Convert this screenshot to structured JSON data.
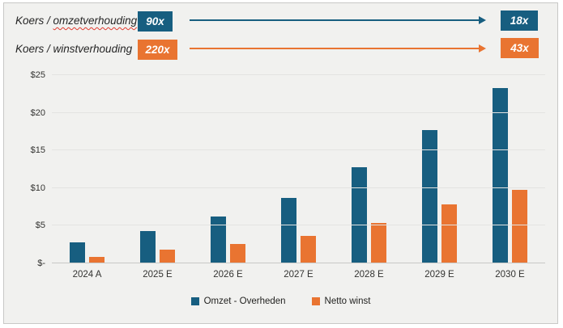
{
  "header": {
    "row1": {
      "prefix": "Koers / ",
      "term": "omzetverhouding",
      "start_badge": "90x",
      "end_badge": "18x",
      "color": "#175e80"
    },
    "row2": {
      "prefix": "Koers / ",
      "term": "winstverhouding",
      "start_badge": "220x",
      "end_badge": "43x",
      "color": "#e97431"
    }
  },
  "chart_data": {
    "type": "bar",
    "categories": [
      "2024 A",
      "2025 E",
      "2026 E",
      "2027 E",
      "2028 E",
      "2029 E",
      "2030 E"
    ],
    "series": [
      {
        "name": "Omzet - Overheden",
        "color": "#175e80",
        "values": [
          2.8,
          4.3,
          6.2,
          8.7,
          12.8,
          17.7,
          23.3
        ]
      },
      {
        "name": "Netto winst",
        "color": "#e97431",
        "values": [
          0.9,
          1.8,
          2.6,
          3.6,
          5.4,
          7.8,
          9.8
        ]
      }
    ],
    "title": "",
    "xlabel": "",
    "ylabel": "",
    "ylim": [
      0,
      25
    ],
    "ytick_labels_bottom_to_top": [
      "$-",
      "$5",
      "$10",
      "$15",
      "$20",
      "$25"
    ],
    "grid": true,
    "legend_position": "bottom"
  },
  "colors": {
    "panel_background": "#f1f1ef",
    "panel_border": "#c8c8c6",
    "gridline": "#e3e3e1",
    "axis_line": "#c9c9c7",
    "spellcheck_underline": "#e03a2f"
  }
}
